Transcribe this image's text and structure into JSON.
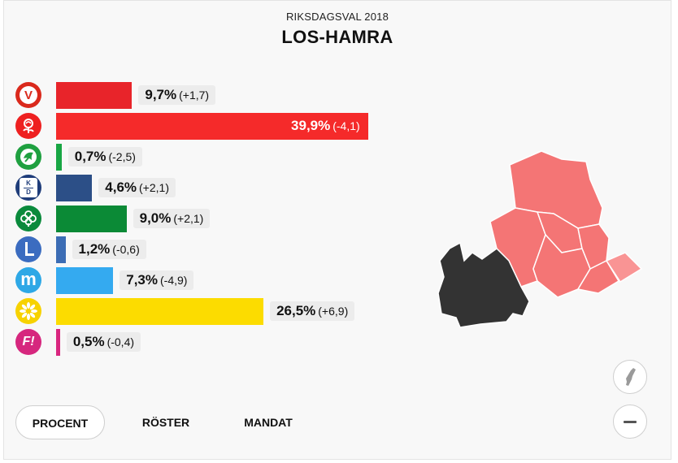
{
  "header": {
    "election": "RIKSDAGSVAL 2018",
    "title": "LOS-HAMRA"
  },
  "parties": [
    {
      "id": "v",
      "name": "V",
      "logo_text": "V",
      "color": "#da291c",
      "bar_color": "#e8242a",
      "percent": "9,7%",
      "change": "(+1,7)",
      "value": 9.7
    },
    {
      "id": "s",
      "name": "S",
      "logo_text": "",
      "color": "#ee2020",
      "bar_color": "#f52a2a",
      "percent": "39,9%",
      "change": "(-4,1)",
      "value": 39.9
    },
    {
      "id": "mp",
      "name": "MP",
      "logo_text": "",
      "color": "#1fa040",
      "bar_color": "#18a644",
      "percent": "0,7%",
      "change": "(-2,5)",
      "value": 0.7
    },
    {
      "id": "kd",
      "name": "KD",
      "logo_text": "KD",
      "color": "#1f3d7a",
      "bar_color": "#2c4f87",
      "percent": "4,6%",
      "change": "(+2,1)",
      "value": 4.6
    },
    {
      "id": "c",
      "name": "C",
      "logo_text": "",
      "color": "#0a8a3c",
      "bar_color": "#0b8a36",
      "percent": "9,0%",
      "change": "(+2,1)",
      "value": 9.0
    },
    {
      "id": "l",
      "name": "L",
      "logo_text": "L",
      "color": "#3b6cc0",
      "bar_color": "#3c6db5",
      "percent": "1,2%",
      "change": "(-0,6)",
      "value": 1.2
    },
    {
      "id": "m",
      "name": "M",
      "logo_text": "m",
      "color": "#2ea8e6",
      "bar_color": "#34aaf0",
      "percent": "7,3%",
      "change": "(-4,9)",
      "value": 7.3
    },
    {
      "id": "sd",
      "name": "SD",
      "logo_text": "",
      "color": "#f7d200",
      "bar_color": "#fcdc00",
      "percent": "26,5%",
      "change": "(+6,9)",
      "value": 26.5
    },
    {
      "id": "fi",
      "name": "FI",
      "logo_text": "F!",
      "color": "#d6277e",
      "bar_color": "#d9267f",
      "percent": "0,5%",
      "change": "(-0,4)",
      "value": 0.5
    }
  ],
  "scale_max": 40,
  "tabs": [
    {
      "id": "procent",
      "label": "PROCENT",
      "active": true
    },
    {
      "id": "roster",
      "label": "RÖSTER",
      "active": false
    },
    {
      "id": "mandat",
      "label": "MANDAT",
      "active": false
    }
  ],
  "icons": {
    "sweden": "sweden-map-icon",
    "zoom_out": "minus-icon"
  }
}
